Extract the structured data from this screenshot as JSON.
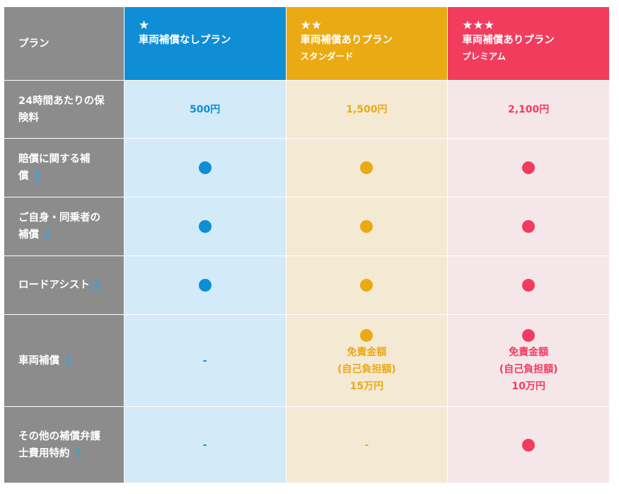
{
  "header": {
    "label": "プラン",
    "plans": [
      {
        "stars": "★",
        "name": "車両補償なしプラン",
        "sub": ""
      },
      {
        "stars": "★★",
        "name": "車両補償ありプラン",
        "sub": "スタンダード"
      },
      {
        "stars": "★★★",
        "name": "車両補償ありプラン",
        "sub": "プレミアム"
      }
    ]
  },
  "rows": {
    "price": {
      "label": "24時間あたりの保険料",
      "values": [
        "500円",
        "1,500円",
        "2,100円"
      ]
    },
    "liability": {
      "label": "賠償に関する補償",
      "help": "?"
    },
    "self": {
      "label": "ご自身・同乗者の補償",
      "help": "?"
    },
    "road": {
      "label": "ロードアシスト",
      "help": "?"
    },
    "vehicle": {
      "label": "車両補償",
      "help": "?",
      "none": "-",
      "deductible_title": "免責金額",
      "deductible_sub": "(自己負担額)",
      "deductibles": [
        "15万円",
        "10万円"
      ]
    },
    "other": {
      "label": "その他の補償弁護士費用特約",
      "help": "?",
      "none": "-"
    }
  },
  "colors": {
    "label_bg": "#8c8c8c",
    "plan1": "#0f8ed6",
    "plan2": "#eaaa14",
    "plan3": "#f23c5e",
    "plan1_bg": "#d3eaf8",
    "plan2_bg": "#f4ead4",
    "plan3_bg": "#f5e6ea",
    "help_link": "#2aa6e8"
  },
  "icons": {
    "included": "filled-circle"
  }
}
